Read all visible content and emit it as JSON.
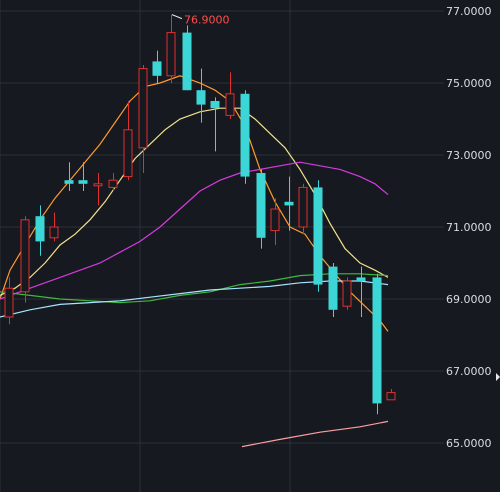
{
  "chart_data": {
    "type": "candlestick",
    "y_scale": "linear",
    "ylim": [
      64.1,
      77.3
    ],
    "grid": true,
    "colors": {
      "background": "#16191f",
      "grid": "#2b2f37",
      "up": "#e03030",
      "down": "#3dd6d6",
      "ma_orange": "#ff9a2e",
      "ma_yellow": "#f2e28c",
      "ma_magenta": "#d63ae0",
      "ma_green": "#3fb93f",
      "ma_lightblue": "#a8e3ff",
      "ma_pink": "#ff9f9f",
      "high_label": "#ff4d4d",
      "axis_text": "#d9dde3"
    },
    "y_ticks": [
      {
        "value": 77,
        "label": "77.0000"
      },
      {
        "value": 75,
        "label": "75.0000"
      },
      {
        "value": 73,
        "label": "73.0000"
      },
      {
        "value": 71,
        "label": "71.0000"
      },
      {
        "value": 69,
        "label": "69.0000"
      },
      {
        "value": 67,
        "label": "67.0000"
      },
      {
        "value": 65,
        "label": "65.0000"
      }
    ],
    "high_annotation": {
      "label": "76.9000",
      "value": 76.9,
      "candle_index": 11
    },
    "candles": [
      {
        "open": 68.5,
        "close": 69.3,
        "high": 69.6,
        "low": 68.3
      },
      {
        "open": 69.2,
        "close": 71.2,
        "high": 71.3,
        "low": 68.9
      },
      {
        "open": 71.3,
        "close": 70.6,
        "high": 71.6,
        "low": 70.2
      },
      {
        "open": 70.7,
        "close": 71.0,
        "high": 71.4,
        "low": 70.6
      },
      {
        "open": 72.3,
        "close": 72.2,
        "high": 72.8,
        "low": 72.0
      },
      {
        "open": 72.3,
        "close": 72.2,
        "high": 72.8,
        "low": 72.0
      },
      {
        "open": 72.2,
        "close": 72.2,
        "high": 72.5,
        "low": 71.6
      },
      {
        "open": 72.1,
        "close": 72.3,
        "high": 72.5,
        "low": 72.0
      },
      {
        "open": 72.4,
        "close": 73.7,
        "high": 74.5,
        "low": 72.3
      },
      {
        "open": 73.2,
        "close": 75.4,
        "high": 75.5,
        "low": 72.5
      },
      {
        "open": 75.6,
        "close": 75.2,
        "high": 75.9,
        "low": 75.0
      },
      {
        "open": 75.2,
        "close": 76.4,
        "high": 76.9,
        "low": 75.0
      },
      {
        "open": 76.4,
        "close": 74.8,
        "high": 76.6,
        "low": 74.8
      },
      {
        "open": 74.8,
        "close": 74.4,
        "high": 75.4,
        "low": 73.9
      },
      {
        "open": 74.5,
        "close": 74.3,
        "high": 74.6,
        "low": 73.1
      },
      {
        "open": 74.1,
        "close": 74.7,
        "high": 75.3,
        "low": 74.0
      },
      {
        "open": 74.7,
        "close": 72.4,
        "high": 74.8,
        "low": 72.2
      },
      {
        "open": 72.5,
        "close": 70.7,
        "high": 72.6,
        "low": 70.4
      },
      {
        "open": 70.9,
        "close": 71.5,
        "high": 71.8,
        "low": 70.5
      },
      {
        "open": 71.7,
        "close": 71.6,
        "high": 72.4,
        "low": 70.9
      },
      {
        "open": 71.0,
        "close": 72.1,
        "high": 72.2,
        "low": 70.8
      },
      {
        "open": 72.1,
        "close": 69.4,
        "high": 72.3,
        "low": 69.2
      },
      {
        "open": 69.9,
        "close": 68.7,
        "high": 70.0,
        "low": 68.5
      },
      {
        "open": 68.8,
        "close": 69.5,
        "high": 69.6,
        "low": 68.7
      },
      {
        "open": 69.6,
        "close": 69.5,
        "high": 69.9,
        "low": 68.5
      },
      {
        "open": 69.6,
        "close": 66.1,
        "high": 69.7,
        "low": 65.8
      },
      {
        "open": 66.2,
        "close": 66.4,
        "high": 66.5,
        "low": 66.2
      }
    ],
    "x_positions": [
      6,
      22,
      37,
      51,
      66,
      80,
      95,
      110,
      125,
      140,
      154,
      168,
      184,
      198,
      212,
      227,
      242,
      258,
      272,
      286,
      300,
      315,
      330,
      344,
      358,
      374,
      388
    ],
    "moving_averages": [
      {
        "color_key": "ma_orange",
        "points": [
          [
            0,
            69.0
          ],
          [
            10,
            69.8
          ],
          [
            25,
            70.5
          ],
          [
            40,
            71.2
          ],
          [
            55,
            71.8
          ],
          [
            70,
            72.3
          ],
          [
            85,
            72.8
          ],
          [
            100,
            73.3
          ],
          [
            115,
            73.9
          ],
          [
            130,
            74.5
          ],
          [
            145,
            74.9
          ],
          [
            160,
            75.0
          ],
          [
            180,
            75.2
          ],
          [
            200,
            75.0
          ],
          [
            215,
            74.8
          ],
          [
            230,
            74.5
          ],
          [
            245,
            73.8
          ],
          [
            260,
            72.6
          ],
          [
            275,
            71.7
          ],
          [
            290,
            71.0
          ],
          [
            305,
            70.8
          ],
          [
            320,
            70.2
          ],
          [
            335,
            69.7
          ],
          [
            350,
            69.2
          ],
          [
            365,
            68.8
          ],
          [
            380,
            68.4
          ],
          [
            388,
            68.1
          ]
        ]
      },
      {
        "color_key": "ma_yellow",
        "points": [
          [
            0,
            69.1
          ],
          [
            15,
            69.3
          ],
          [
            30,
            69.6
          ],
          [
            45,
            70.0
          ],
          [
            60,
            70.5
          ],
          [
            75,
            70.8
          ],
          [
            90,
            71.2
          ],
          [
            105,
            71.7
          ],
          [
            120,
            72.3
          ],
          [
            135,
            72.9
          ],
          [
            150,
            73.3
          ],
          [
            165,
            73.7
          ],
          [
            180,
            74.0
          ],
          [
            200,
            74.2
          ],
          [
            220,
            74.3
          ],
          [
            240,
            74.3
          ],
          [
            255,
            74.0
          ],
          [
            270,
            73.6
          ],
          [
            285,
            73.2
          ],
          [
            300,
            72.6
          ],
          [
            315,
            71.9
          ],
          [
            330,
            71.1
          ],
          [
            345,
            70.4
          ],
          [
            360,
            70.0
          ],
          [
            375,
            69.8
          ],
          [
            388,
            69.6
          ]
        ]
      },
      {
        "color_key": "ma_magenta",
        "points": [
          [
            0,
            69.0
          ],
          [
            20,
            69.2
          ],
          [
            40,
            69.4
          ],
          [
            60,
            69.6
          ],
          [
            80,
            69.8
          ],
          [
            100,
            70.0
          ],
          [
            120,
            70.3
          ],
          [
            140,
            70.6
          ],
          [
            160,
            71.0
          ],
          [
            180,
            71.5
          ],
          [
            200,
            72.0
          ],
          [
            220,
            72.3
          ],
          [
            240,
            72.5
          ],
          [
            260,
            72.6
          ],
          [
            280,
            72.7
          ],
          [
            300,
            72.8
          ],
          [
            320,
            72.7
          ],
          [
            340,
            72.6
          ],
          [
            360,
            72.4
          ],
          [
            375,
            72.2
          ],
          [
            388,
            71.9
          ]
        ]
      },
      {
        "color_key": "ma_green",
        "points": [
          [
            0,
            69.2
          ],
          [
            30,
            69.1
          ],
          [
            60,
            69.0
          ],
          [
            90,
            68.95
          ],
          [
            120,
            68.9
          ],
          [
            150,
            68.95
          ],
          [
            180,
            69.1
          ],
          [
            210,
            69.2
          ],
          [
            240,
            69.4
          ],
          [
            270,
            69.5
          ],
          [
            300,
            69.65
          ],
          [
            330,
            69.7
          ],
          [
            360,
            69.7
          ],
          [
            388,
            69.65
          ]
        ]
      },
      {
        "color_key": "ma_lightblue",
        "points": [
          [
            0,
            68.5
          ],
          [
            30,
            68.7
          ],
          [
            60,
            68.85
          ],
          [
            90,
            68.9
          ],
          [
            120,
            68.95
          ],
          [
            150,
            69.05
          ],
          [
            180,
            69.15
          ],
          [
            210,
            69.25
          ],
          [
            240,
            69.3
          ],
          [
            270,
            69.35
          ],
          [
            300,
            69.45
          ],
          [
            330,
            69.5
          ],
          [
            360,
            69.5
          ],
          [
            388,
            69.4
          ]
        ]
      },
      {
        "color_key": "ma_pink",
        "points": [
          [
            242,
            64.9
          ],
          [
            280,
            65.1
          ],
          [
            320,
            65.3
          ],
          [
            360,
            65.45
          ],
          [
            388,
            65.6
          ]
        ]
      }
    ]
  }
}
